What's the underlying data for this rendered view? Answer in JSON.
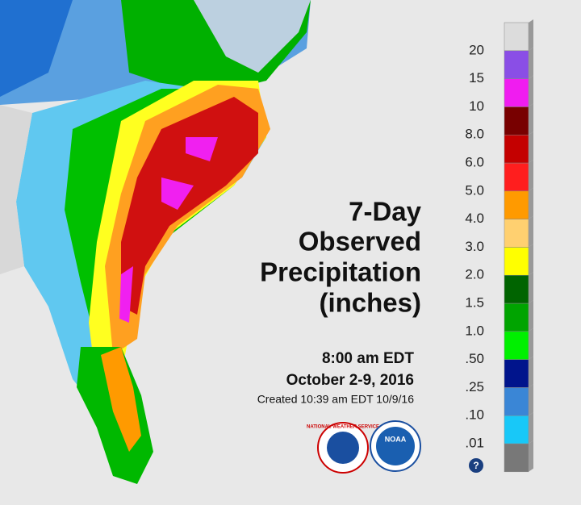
{
  "title": [
    "7-Day",
    "Observed",
    "Precipitation",
    "(inches)"
  ],
  "valid_time": "8:00 am EDT",
  "date_range": "October 2-9, 2016",
  "created": "Created 10:39 am EDT 10/9/16",
  "logos": {
    "nws": "NATIONAL WEATHER SERVICE",
    "noaa": "NOAA"
  },
  "help": "?",
  "legend": {
    "labels": [
      "20",
      "15",
      "10",
      "8.0",
      "6.0",
      "5.0",
      "4.0",
      "3.0",
      "2.0",
      "1.5",
      "1.0",
      ".50",
      ".25",
      ".10",
      ".01"
    ],
    "colors": [
      "#dcdcdc",
      "#8a4ee6",
      "#f01cf0",
      "#780000",
      "#c40000",
      "#ff1e1e",
      "#ff9a00",
      "#ffd070",
      "#ffff00",
      "#006400",
      "#00a400",
      "#00f000",
      "#00148c",
      "#3a86d6",
      "#18c8f8",
      "#787878"
    ]
  }
}
